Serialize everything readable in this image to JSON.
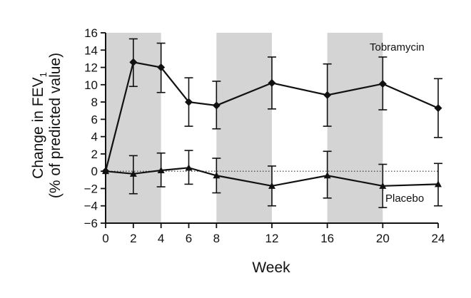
{
  "chart_data": {
    "type": "line",
    "xlabel": "Week",
    "ylabel_line1": "Change in FEV",
    "ylabel_sub": "1",
    "ylabel_line2": "(% of predicted value)",
    "xlim": [
      0,
      24
    ],
    "ylim": [
      -6,
      16
    ],
    "x_ticks": [
      0,
      2,
      4,
      6,
      8,
      12,
      16,
      20,
      24
    ],
    "y_ticks": [
      16,
      14,
      12,
      10,
      8,
      6,
      4,
      2,
      0,
      -2,
      -4,
      -6
    ],
    "shaded_periods": [
      [
        0,
        4
      ],
      [
        8,
        12
      ],
      [
        16,
        20
      ]
    ],
    "reference_line": 0,
    "series": [
      {
        "name": "Tobramycin",
        "marker": "diamond",
        "x": [
          0,
          2,
          4,
          6,
          8,
          12,
          16,
          20,
          24
        ],
        "y": [
          0,
          12.6,
          12.0,
          8.0,
          7.6,
          10.2,
          8.8,
          10.1,
          7.3
        ],
        "err_low": [
          0,
          9.8,
          9.1,
          5.2,
          4.9,
          7.2,
          5.2,
          7.1,
          3.9
        ],
        "err_high": [
          0,
          15.3,
          14.8,
          10.8,
          10.4,
          13.2,
          12.4,
          13.2,
          10.7
        ]
      },
      {
        "name": "Placebo",
        "marker": "triangle",
        "x": [
          0,
          2,
          4,
          6,
          8,
          12,
          16,
          20,
          24
        ],
        "y": [
          0,
          -0.3,
          0.1,
          0.4,
          -0.5,
          -1.7,
          -0.5,
          -1.7,
          -1.5
        ],
        "err_low": [
          0,
          -2.6,
          -1.8,
          -1.5,
          -2.5,
          -4.0,
          -3.1,
          -4.2,
          -4.0
        ],
        "err_high": [
          0,
          1.8,
          2.1,
          2.4,
          1.5,
          0.6,
          2.3,
          0.8,
          0.9
        ]
      }
    ]
  }
}
